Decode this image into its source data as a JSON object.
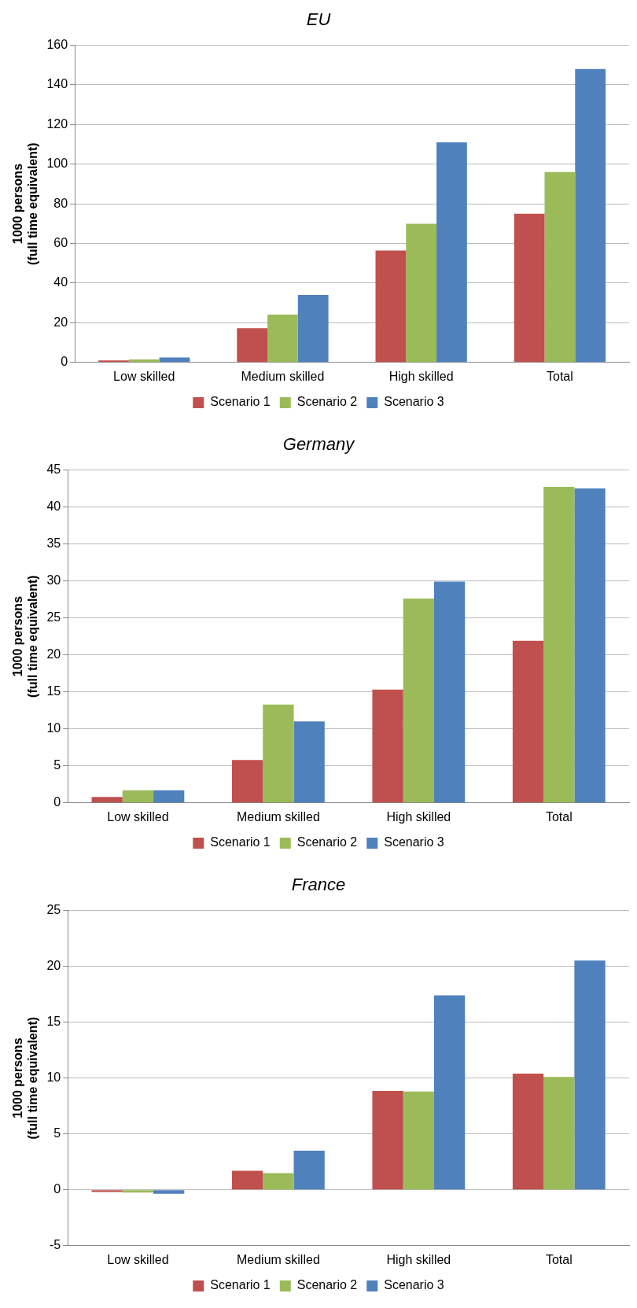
{
  "chart_data": [
    {
      "type": "bar",
      "title": "EU",
      "ylabel": "1000 persons\n(full time equivalent)",
      "categories": [
        "Low skilled",
        "Medium skilled",
        "High skilled",
        "Total"
      ],
      "series": [
        {
          "name": "Scenario 1",
          "color": "#c0504d",
          "values": [
            1,
            17.3,
            56.4,
            75
          ]
        },
        {
          "name": "Scenario 2",
          "color": "#9bbb59",
          "values": [
            1.5,
            24.1,
            69.9,
            96
          ]
        },
        {
          "name": "Scenario 3",
          "color": "#4f81bd",
          "values": [
            2.5,
            34,
            111,
            148
          ]
        }
      ],
      "ylim": [
        0,
        160
      ],
      "yticks": [
        0,
        20,
        40,
        60,
        80,
        100,
        120,
        140,
        160
      ],
      "grid": "y",
      "legend": "bottom"
    },
    {
      "type": "bar",
      "title": "Germany",
      "ylabel": "1000 persons\n(full time equivalent)",
      "categories": [
        "Low skilled",
        "Medium skilled",
        "High skilled",
        "Total"
      ],
      "series": [
        {
          "name": "Scenario 1",
          "color": "#c0504d",
          "values": [
            0.8,
            5.8,
            15.3,
            21.9
          ]
        },
        {
          "name": "Scenario 2",
          "color": "#9bbb59",
          "values": [
            1.7,
            13.3,
            27.6,
            42.7
          ]
        },
        {
          "name": "Scenario 3",
          "color": "#4f81bd",
          "values": [
            1.7,
            11,
            29.9,
            42.5
          ]
        }
      ],
      "ylim": [
        0,
        45
      ],
      "yticks": [
        0,
        5,
        10,
        15,
        20,
        25,
        30,
        35,
        40,
        45
      ],
      "grid": "y",
      "legend": "bottom"
    },
    {
      "type": "bar",
      "title": "France",
      "ylabel": "1000 persons\n(full time equivalent)",
      "categories": [
        "Low skilled",
        "Medium skilled",
        "High skilled",
        "Total"
      ],
      "series": [
        {
          "name": "Scenario 1",
          "color": "#c0504d",
          "values": [
            -0.2,
            1.7,
            8.85,
            10.4
          ]
        },
        {
          "name": "Scenario 2",
          "color": "#9bbb59",
          "values": [
            -0.25,
            1.5,
            8.8,
            10.1
          ]
        },
        {
          "name": "Scenario 3",
          "color": "#4f81bd",
          "values": [
            -0.35,
            3.5,
            17.4,
            20.5
          ]
        }
      ],
      "ylim": [
        -5,
        25
      ],
      "yticks": [
        -5,
        0,
        5,
        10,
        15,
        20,
        25
      ],
      "grid": "y",
      "legend": "bottom"
    }
  ]
}
